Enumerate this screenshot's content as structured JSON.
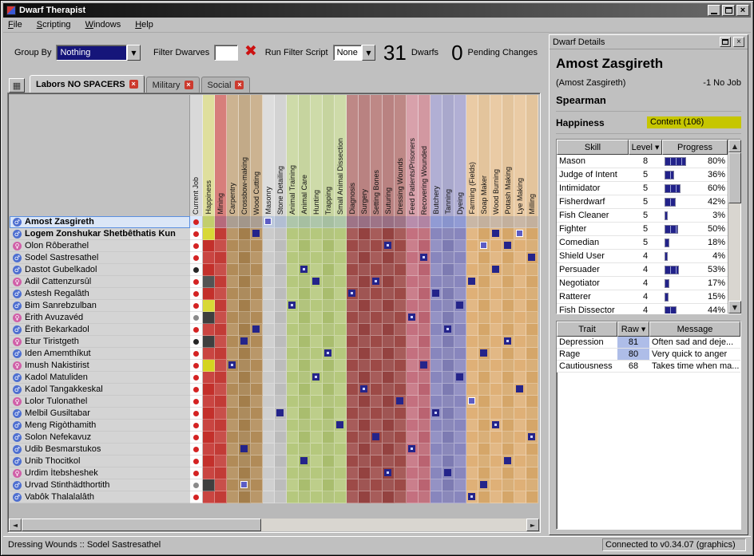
{
  "window": {
    "title": "Dwarf Therapist"
  },
  "menu": [
    "File",
    "Scripting",
    "Windows",
    "Help"
  ],
  "toolbar": {
    "group_by_label": "Group By",
    "group_by_value": "Nothing",
    "filter_label": "Filter Dwarves",
    "filter_value": "",
    "script_label": "Run Filter Script",
    "script_value": "None",
    "dwarf_count": "31",
    "dwarf_count_label": "Dwarfs",
    "pending_count": "0",
    "pending_label": "Pending Changes"
  },
  "tabs": [
    {
      "label": "Labors NO SPACERS",
      "active": true
    },
    {
      "label": "Military",
      "active": false
    },
    {
      "label": "Social",
      "active": false
    }
  ],
  "grid": {
    "columns": [
      {
        "label": "Current Job",
        "type": "job",
        "color": "#c6c6c6"
      },
      {
        "label": "Happiness",
        "type": "happiness",
        "color": "#cfcf6a"
      },
      {
        "label": "Mining",
        "type": "labor",
        "color": "#c23b36"
      },
      {
        "label": "Carpentry",
        "type": "labor",
        "color": "#b18b58"
      },
      {
        "label": "Crossbow-making",
        "type": "labor",
        "color": "#a37e4b"
      },
      {
        "label": "Wood Cutting",
        "type": "labor",
        "color": "#b18b58"
      },
      {
        "label": "Masonry",
        "type": "labor",
        "color": "#cbcbcb"
      },
      {
        "label": "Stone Detailing",
        "type": "labor",
        "color": "#bcbcbc"
      },
      {
        "label": "Animal Training",
        "type": "labor",
        "color": "#b5c87d"
      },
      {
        "label": "Animal Care",
        "type": "labor",
        "color": "#a9bd6e"
      },
      {
        "label": "Hunting",
        "type": "labor",
        "color": "#b5c87d"
      },
      {
        "label": "Trapping",
        "type": "labor",
        "color": "#a9bd6e"
      },
      {
        "label": "Small Animal Dissection",
        "type": "labor",
        "color": "#b5c87d"
      },
      {
        "label": "Diagnosis",
        "type": "labor",
        "color": "#9d4a47"
      },
      {
        "label": "Surgery",
        "type": "labor",
        "color": "#944240"
      },
      {
        "label": "Setting Bones",
        "type": "labor",
        "color": "#9d4a47"
      },
      {
        "label": "Suturing",
        "type": "labor",
        "color": "#944240"
      },
      {
        "label": "Dressing Wounds",
        "type": "labor",
        "color": "#9d4a47"
      },
      {
        "label": "Feed Patients/Prisoners",
        "type": "labor",
        "color": "#c4707f"
      },
      {
        "label": "Recovering Wounded",
        "type": "labor",
        "color": "#ba6371"
      },
      {
        "label": "Butchery",
        "type": "labor",
        "color": "#8886bd"
      },
      {
        "label": "Tanning",
        "type": "labor",
        "color": "#7d7bb2"
      },
      {
        "label": "Dyeing",
        "type": "labor",
        "color": "#8886bd"
      },
      {
        "label": "Farming (Fields)",
        "type": "labor",
        "color": "#dfb077"
      },
      {
        "label": "Soap Maker",
        "type": "labor",
        "color": "#d5a669"
      },
      {
        "label": "Wood Burning",
        "type": "labor",
        "color": "#dfb077"
      },
      {
        "label": "Potash Making",
        "type": "labor",
        "color": "#d5a669"
      },
      {
        "label": "Lye Making",
        "type": "labor",
        "color": "#dfb077"
      },
      {
        "label": "Milling",
        "type": "labor",
        "color": "#d5a669"
      }
    ],
    "rows": [
      {
        "name": "Amost Zasgireth",
        "gender": "m",
        "bold": true,
        "selected": true,
        "job": "idle",
        "happiness": "yellow",
        "cells": {
          "6": "outline"
        }
      },
      {
        "name": "Logem Zonshukar Shetbêthatis Kun",
        "gender": "m",
        "bold": true,
        "job": "idle",
        "happiness": "yellow",
        "cells": {
          "5": "on",
          "25": "on",
          "27": "outline"
        }
      },
      {
        "name": "Olon Rôberathel",
        "gender": "f",
        "job": "idle",
        "happiness": "red",
        "cells": {
          "16": "dot",
          "24": "outline",
          "26": "on"
        }
      },
      {
        "name": "Sodel Sastresathel",
        "gender": "m",
        "job": "idle",
        "happiness": "red",
        "cells": {
          "19": "dot",
          "28": "on"
        }
      },
      {
        "name": "Dastot Gubelkadol",
        "gender": "m",
        "job": "busy",
        "happiness": "red",
        "cells": {
          "9": "dot",
          "25": "on"
        }
      },
      {
        "name": "Adil Cattenzursûl",
        "gender": "f",
        "job": "idle",
        "happiness": "dark",
        "cells": {
          "10": "on",
          "15": "dot",
          "23": "on"
        }
      },
      {
        "name": "Astesh Regalâth",
        "gender": "m",
        "job": "idle",
        "happiness": "red",
        "cells": {
          "13": "dot",
          "20": "on"
        }
      },
      {
        "name": "Bim Sanrebzulban",
        "gender": "m",
        "job": "idle",
        "happiness": "yellow",
        "cells": {
          "8": "dot",
          "22": "on"
        }
      },
      {
        "name": "Êrith Avuzavéd",
        "gender": "f",
        "job": "sleep",
        "happiness": "dark",
        "cells": {
          "18": "dot"
        }
      },
      {
        "name": "Êrith Bekarkadol",
        "gender": "m",
        "job": "idle",
        "happiness": "red",
        "cells": {
          "5": "on",
          "21": "dot"
        }
      },
      {
        "name": "Etur Tiristgeth",
        "gender": "f",
        "job": "busy",
        "happiness": "dark",
        "cells": {
          "4": "on",
          "26": "dot"
        }
      },
      {
        "name": "Iden Amemthíkut",
        "gender": "m",
        "job": "idle",
        "happiness": "red",
        "cells": {
          "11": "dot",
          "24": "on"
        }
      },
      {
        "name": "Imush Nakistirist",
        "gender": "f",
        "job": "idle",
        "happiness": "yellow",
        "cells": {
          "3": "dot",
          "19": "on"
        }
      },
      {
        "name": "Kadol Matuliden",
        "gender": "m",
        "job": "idle",
        "happiness": "red",
        "cells": {
          "10": "dot",
          "22": "on"
        }
      },
      {
        "name": "Kadol Tangakkeskal",
        "gender": "m",
        "job": "idle",
        "happiness": "red",
        "cells": {
          "14": "dot",
          "27": "on"
        }
      },
      {
        "name": "Lolor Tulonathel",
        "gender": "f",
        "job": "idle",
        "happiness": "red",
        "cells": {
          "17": "on",
          "23": "outline"
        }
      },
      {
        "name": "Melbil Gusiltabar",
        "gender": "m",
        "job": "idle",
        "happiness": "red",
        "cells": {
          "7": "on",
          "20": "dot"
        }
      },
      {
        "name": "Meng Rigòthamith",
        "gender": "m",
        "job": "idle",
        "happiness": "red",
        "cells": {
          "12": "on",
          "25": "dot"
        }
      },
      {
        "name": "Solon Nefekavuz",
        "gender": "m",
        "job": "idle",
        "happiness": "red",
        "cells": {
          "15": "on",
          "28": "dot"
        }
      },
      {
        "name": "Udib Besmarstukos",
        "gender": "m",
        "job": "idle",
        "happiness": "red",
        "cells": {
          "4": "on",
          "18": "dot"
        }
      },
      {
        "name": "Unib Thocitkol",
        "gender": "m",
        "job": "idle",
        "happiness": "red",
        "cells": {
          "9": "on",
          "26": "on"
        }
      },
      {
        "name": "Urdim Ítebsheshek",
        "gender": "f",
        "job": "idle",
        "happiness": "red",
        "cells": {
          "16": "dot",
          "21": "on"
        }
      },
      {
        "name": "Urvad Stinthädthortith",
        "gender": "m",
        "job": "sleep",
        "happiness": "dark",
        "cells": {
          "4": "outline",
          "24": "on"
        }
      },
      {
        "name": "Vabôk Thalalalâth",
        "gender": "m",
        "job": "idle",
        "happiness": "red",
        "cells": {
          "23": "dot"
        }
      }
    ],
    "happiness_colors": {
      "yellow": "#d4d41f",
      "red": "#c3302b",
      "dark": "#3f3f3f"
    }
  },
  "details": {
    "title": "Dwarf Details",
    "name": "Amost Zasgireth",
    "nickname": "(Amost Zasgireth)",
    "job": "-1 No Job",
    "profession": "Spearman",
    "happiness_label": "Happiness",
    "happiness_value": "Content (106)",
    "happiness_color": "#c6c600",
    "skills": {
      "headers": [
        "Skill",
        "Level",
        "Progress"
      ],
      "sort_index": 1,
      "rows": [
        {
          "skill": "Mason",
          "level": "8",
          "pct": 80,
          "label": "80%"
        },
        {
          "skill": "Judge of Intent",
          "level": "5",
          "pct": 36,
          "label": "36%"
        },
        {
          "skill": "Intimidator",
          "level": "5",
          "pct": 60,
          "label": "60%"
        },
        {
          "skill": "Fisherdwarf",
          "level": "5",
          "pct": 42,
          "label": "42%"
        },
        {
          "skill": "Fish Cleaner",
          "level": "5",
          "pct": 3,
          "label": "3%"
        },
        {
          "skill": "Fighter",
          "level": "5",
          "pct": 50,
          "label": "50%"
        },
        {
          "skill": "Comedian",
          "level": "5",
          "pct": 18,
          "label": "18%"
        },
        {
          "skill": "Shield User",
          "level": "4",
          "pct": 4,
          "label": "4%"
        },
        {
          "skill": "Persuader",
          "level": "4",
          "pct": 53,
          "label": "53%"
        },
        {
          "skill": "Negotiator",
          "level": "4",
          "pct": 17,
          "label": "17%"
        },
        {
          "skill": "Ratterer",
          "level": "4",
          "pct": 15,
          "label": "15%"
        },
        {
          "skill": "Fish Dissector",
          "level": "4",
          "pct": 44,
          "label": "44%"
        }
      ]
    },
    "traits": {
      "headers": [
        "Trait",
        "Raw",
        "Message"
      ],
      "sort_index": 1,
      "rows": [
        {
          "trait": "Depression",
          "raw": "81",
          "message": "Often sad and deje...",
          "highlight": true
        },
        {
          "trait": "Rage",
          "raw": "80",
          "message": "Very quick to anger",
          "highlight": true
        },
        {
          "trait": "Cautiousness",
          "raw": "68",
          "message": "Takes time when ma...",
          "highlight": false
        }
      ]
    }
  },
  "status": {
    "left": "Dressing Wounds :: Sodel Sastresathel",
    "right": "Connected to v0.34.07 (graphics)"
  }
}
